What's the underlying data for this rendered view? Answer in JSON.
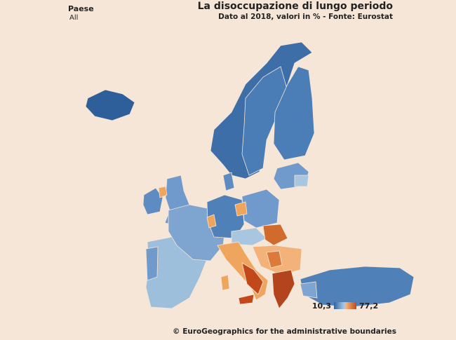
{
  "filter": {
    "label": "Paese",
    "value": "All"
  },
  "header": {
    "title": "La disoccupazione di lungo periodo",
    "subtitle": "Dato al 2018, valori in % - Fonte: Eurostat"
  },
  "legend": {
    "min": "10,3",
    "max": "77,2"
  },
  "footer": {
    "credit": "© EuroGeographics for the administrative boundaries"
  }
}
